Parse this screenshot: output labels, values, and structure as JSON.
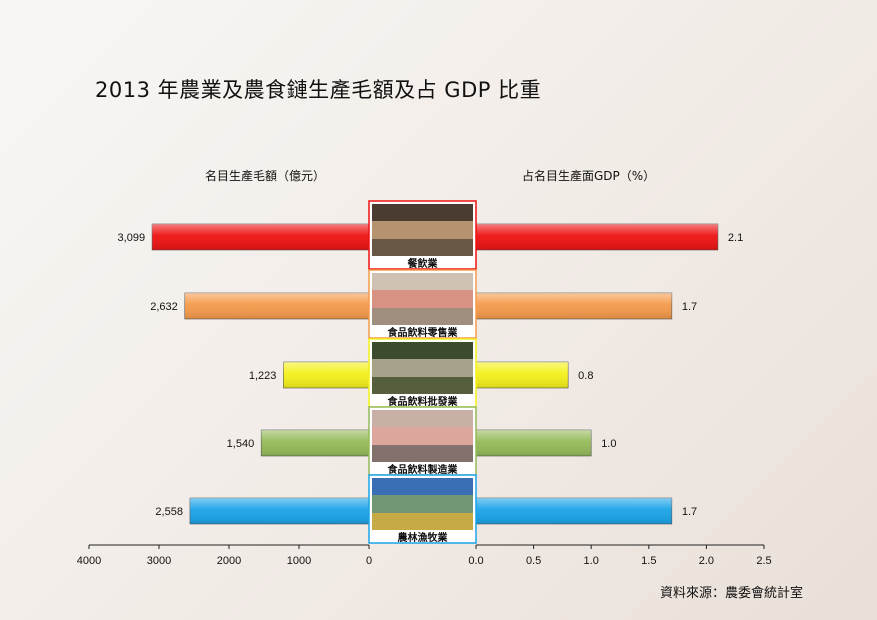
{
  "chart_data": {
    "type": "bar",
    "title": "2013 年農業及農食鏈生產毛額及占 GDP 比重",
    "categories": [
      "餐飲業",
      "食品飲料零售業",
      "食品飲料批發業",
      "食品飲料製造業",
      "農林漁牧業"
    ],
    "series": [
      {
        "name": "名目生產毛額（億元）",
        "values": [
          3099,
          2632,
          1223,
          1540,
          2558
        ],
        "value_labels": [
          "3,099",
          "2,632",
          "1,223",
          "1,540",
          "2,558"
        ]
      },
      {
        "name": "占名目生產面GDP（%）",
        "values": [
          2.1,
          1.7,
          0.8,
          1.0,
          1.7
        ],
        "value_labels": [
          "2.1",
          "1.7",
          "0.8",
          "1.0",
          "1.7"
        ]
      }
    ],
    "left_axis": {
      "label": "名目生產毛額（億元）",
      "range": [
        0,
        4000
      ],
      "direction": "reversed",
      "ticks": [
        4000,
        3000,
        2000,
        1000,
        0
      ],
      "tick_labels": [
        "4000",
        "3000",
        "2000",
        "1000",
        "0"
      ]
    },
    "right_axis": {
      "label": "占名目生產面GDP（%）",
      "range": [
        0,
        2.5
      ],
      "ticks": [
        0,
        0.5,
        1,
        1.5,
        2,
        2.5
      ],
      "tick_labels": [
        "0.0",
        "0.5",
        "1.0",
        "1.5",
        "2.0",
        "2.5"
      ]
    },
    "bar_colors": [
      "#ee1111",
      "#f59a4a",
      "#f4f01a",
      "#94ba58",
      "#1aa3e8"
    ],
    "grid": false,
    "source": "資料來源：農委會統計室"
  }
}
